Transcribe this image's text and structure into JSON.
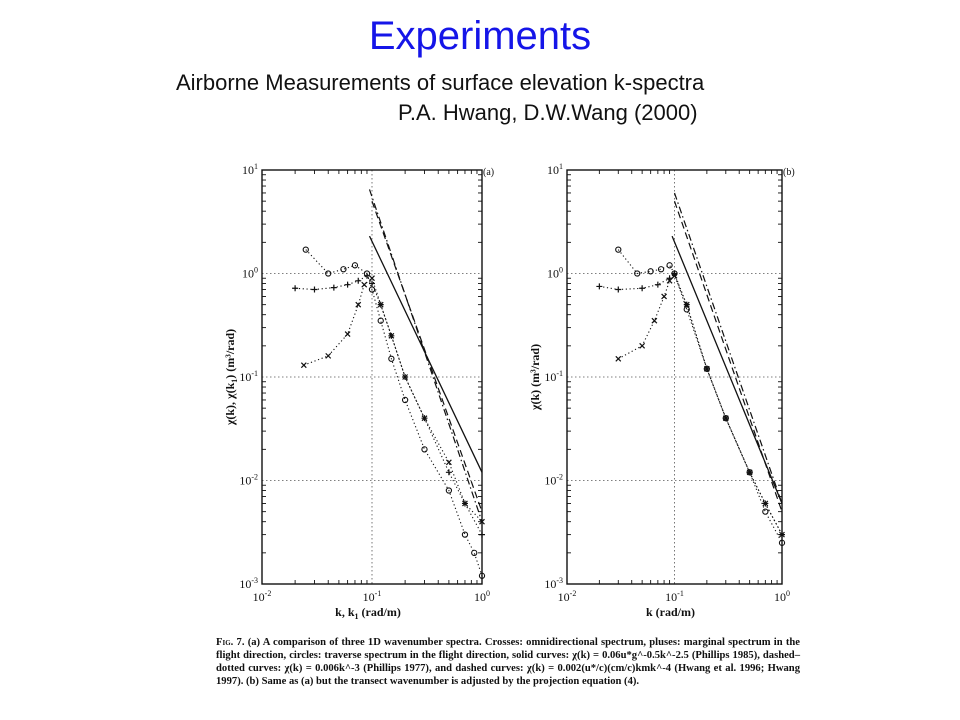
{
  "slide": {
    "title": "Experiments",
    "subtitle": "Airborne Measurements of surface elevation k-spectra",
    "authors": "P.A. Hwang, D.W.Wang (2000)"
  },
  "chart_data": [
    {
      "type": "line",
      "panel_label": "(a)",
      "xlabel": "k, k",
      "xlabel_sub": "1",
      "xlabel_unit": "(rad/m)",
      "ylabel": "χ(k), χ(k",
      "ylabel_sub": "1",
      "ylabel_unit": ") (m³/rad)",
      "x_scale": "log",
      "y_scale": "log",
      "xlim": [
        0.01,
        1
      ],
      "ylim": [
        0.001,
        10
      ],
      "x_ticks": [
        "10-2",
        "10-1",
        "100"
      ],
      "y_ticks": [
        "10-3",
        "10-2",
        "10-1",
        "100",
        "101"
      ],
      "grid": true,
      "series": [
        {
          "style": "dotted-cross",
          "x": [
            0.024,
            0.04,
            0.06,
            0.075,
            0.085,
            0.1,
            0.12,
            0.15,
            0.2,
            0.3,
            0.5,
            0.7,
            1.0
          ],
          "y": [
            0.13,
            0.16,
            0.26,
            0.5,
            0.78,
            0.9,
            0.5,
            0.25,
            0.1,
            0.04,
            0.015,
            0.006,
            0.004
          ]
        },
        {
          "style": "dotted-plus",
          "x": [
            0.02,
            0.03,
            0.045,
            0.06,
            0.075,
            0.09,
            0.1,
            0.12,
            0.15,
            0.2,
            0.3,
            0.5,
            0.7,
            1.0
          ],
          "y": [
            0.72,
            0.7,
            0.73,
            0.78,
            0.85,
            0.95,
            0.8,
            0.5,
            0.25,
            0.1,
            0.04,
            0.012,
            0.006,
            0.003
          ]
        },
        {
          "style": "dotted-circle",
          "x": [
            0.025,
            0.04,
            0.055,
            0.07,
            0.09,
            0.1,
            0.12,
            0.15,
            0.2,
            0.3,
            0.5,
            0.7,
            0.85,
            1.0
          ],
          "y": [
            1.7,
            1.0,
            1.1,
            1.2,
            1.0,
            0.7,
            0.35,
            0.15,
            0.06,
            0.02,
            0.008,
            0.003,
            0.002,
            0.0012
          ]
        },
        {
          "style": "solid",
          "x": [
            0.095,
            1.0
          ],
          "y": [
            2.3,
            0.012
          ]
        },
        {
          "style": "dashdot",
          "x": [
            0.095,
            1.0
          ],
          "y": [
            6.5,
            0.004
          ]
        },
        {
          "style": "dashed",
          "x": [
            0.1,
            1.0
          ],
          "y": [
            5.0,
            0.005
          ]
        }
      ]
    },
    {
      "type": "line",
      "panel_label": "(b)",
      "xlabel": "k",
      "xlabel_sub": "",
      "xlabel_unit": "(rad/m)",
      "ylabel": "χ(k)",
      "ylabel_sub": "",
      "ylabel_unit": " (m³/rad)",
      "x_scale": "log",
      "y_scale": "log",
      "xlim": [
        0.01,
        1
      ],
      "ylim": [
        0.001,
        10
      ],
      "x_ticks": [
        "10-2",
        "10-1",
        "100"
      ],
      "y_ticks": [
        "10-3",
        "10-2",
        "10-1",
        "100",
        "101"
      ],
      "grid": true,
      "series": [
        {
          "style": "dotted-cross",
          "x": [
            0.03,
            0.05,
            0.065,
            0.08,
            0.09,
            0.1,
            0.13,
            0.2,
            0.3,
            0.5,
            0.7,
            1.0
          ],
          "y": [
            0.15,
            0.2,
            0.35,
            0.6,
            0.85,
            0.95,
            0.5,
            0.12,
            0.04,
            0.012,
            0.006,
            0.003
          ]
        },
        {
          "style": "dotted-plus",
          "x": [
            0.02,
            0.03,
            0.05,
            0.07,
            0.09,
            0.1,
            0.13,
            0.2,
            0.3,
            0.5,
            0.7,
            1.0
          ],
          "y": [
            0.75,
            0.7,
            0.72,
            0.78,
            0.9,
            1.0,
            0.5,
            0.12,
            0.04,
            0.012,
            0.006,
            0.003
          ]
        },
        {
          "style": "dotted-circle",
          "x": [
            0.03,
            0.045,
            0.06,
            0.075,
            0.09,
            0.1,
            0.13,
            0.2,
            0.3,
            0.5,
            0.7,
            1.0
          ],
          "y": [
            1.7,
            1.0,
            1.05,
            1.1,
            1.2,
            1.0,
            0.45,
            0.12,
            0.04,
            0.012,
            0.005,
            0.0025
          ]
        },
        {
          "style": "solid",
          "x": [
            0.095,
            1.0
          ],
          "y": [
            2.3,
            0.006
          ]
        },
        {
          "style": "dashdot",
          "x": [
            0.1,
            1.0
          ],
          "y": [
            6.0,
            0.006
          ]
        },
        {
          "style": "dashed",
          "x": [
            0.1,
            1.0
          ],
          "y": [
            5.0,
            0.005
          ]
        }
      ]
    }
  ],
  "caption": {
    "label": "Fig. 7.",
    "text": "(a) A comparison of three 1D wavenumber spectra. Crosses: omnidirectional spectrum, pluses: marginal spectrum in the flight direction, circles: traverse spectrum in the flight direction, solid curves: χ(k) = 0.06u*g^-0.5k^-2.5 (Phillips 1985), dashed–dotted curves: χ(k) = 0.006k^-3 (Phillips 1977), and dashed curves: χ(k) = 0.002(u*/c)(cm/c)kmk^-4 (Hwang et al. 1996; Hwang 1997). (b) Same as (a) but the transect wavenumber is adjusted by the projection equation (4)."
  }
}
